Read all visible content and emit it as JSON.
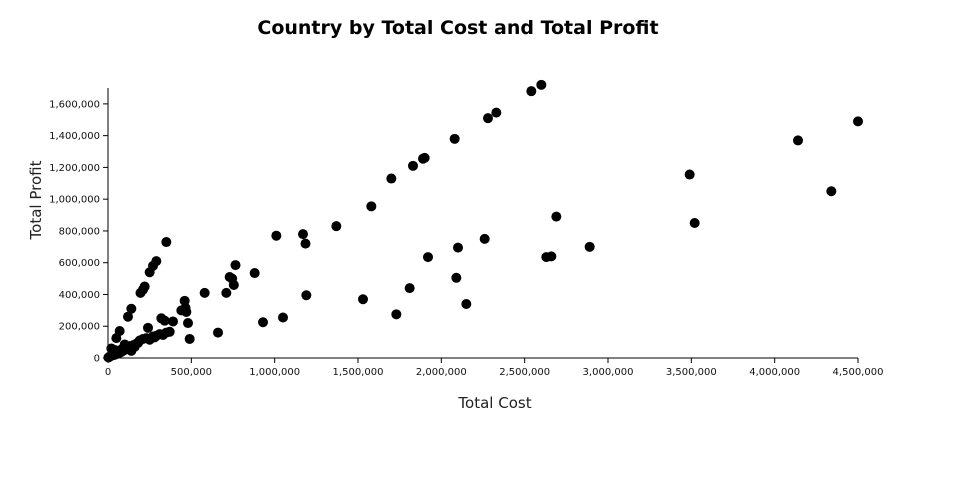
{
  "chart_data": {
    "type": "scatter",
    "title": "Country by Total Cost and Total Profit",
    "xlabel": "Total Cost",
    "ylabel": "Total Profit",
    "xlim": [
      0,
      4500000
    ],
    "ylim": [
      0,
      1700000
    ],
    "x_ticks": [
      0,
      500000,
      1000000,
      1500000,
      2000000,
      2500000,
      3000000,
      3500000,
      4000000,
      4500000
    ],
    "x_tick_labels": [
      "0",
      "500,000",
      "1,000,000",
      "1,500,000",
      "2,000,000",
      "2,500,000",
      "3,000,000",
      "3,500,000",
      "4,000,000",
      "4,500,000"
    ],
    "y_ticks": [
      0,
      200000,
      400000,
      600000,
      800000,
      1000000,
      1200000,
      1400000,
      1600000
    ],
    "y_tick_labels": [
      "0",
      "200,000",
      "400,000",
      "600,000",
      "800,000",
      "1,000,000",
      "1,200,000",
      "1,400,000",
      "1,600,000"
    ],
    "grid": false,
    "marker_color": "#000000",
    "points": [
      [
        2500,
        3000
      ],
      [
        10000,
        8000
      ],
      [
        15000,
        12000
      ],
      [
        20000,
        15000
      ],
      [
        25000,
        20000
      ],
      [
        30000,
        25000
      ],
      [
        35000,
        18000
      ],
      [
        40000,
        30000
      ],
      [
        45000,
        22000
      ],
      [
        50000,
        35000
      ],
      [
        55000,
        28000
      ],
      [
        60000,
        40000
      ],
      [
        65000,
        30000
      ],
      [
        70000,
        45000
      ],
      [
        75000,
        50000
      ],
      [
        80000,
        38000
      ],
      [
        85000,
        55000
      ],
      [
        90000,
        60000
      ],
      [
        95000,
        48000
      ],
      [
        100000,
        65000
      ],
      [
        110000,
        70000
      ],
      [
        120000,
        55000
      ],
      [
        130000,
        75000
      ],
      [
        140000,
        45000
      ],
      [
        150000,
        80000
      ],
      [
        160000,
        70000
      ],
      [
        170000,
        90000
      ],
      [
        180000,
        95000
      ],
      [
        190000,
        110000
      ],
      [
        210000,
        120000
      ],
      [
        230000,
        125000
      ],
      [
        250000,
        115000
      ],
      [
        270000,
        135000
      ],
      [
        290000,
        140000
      ],
      [
        310000,
        150000
      ],
      [
        330000,
        145000
      ],
      [
        350000,
        160000
      ],
      [
        370000,
        165000
      ],
      [
        20000,
        60000
      ],
      [
        40000,
        50000
      ],
      [
        50000,
        125000
      ],
      [
        70000,
        170000
      ],
      [
        100000,
        85000
      ],
      [
        120000,
        260000
      ],
      [
        140000,
        310000
      ],
      [
        195000,
        410000
      ],
      [
        210000,
        430000
      ],
      [
        220000,
        450000
      ],
      [
        250000,
        540000
      ],
      [
        270000,
        580000
      ],
      [
        290000,
        610000
      ],
      [
        350000,
        730000
      ],
      [
        240000,
        190000
      ],
      [
        280000,
        130000
      ],
      [
        320000,
        250000
      ],
      [
        340000,
        235000
      ],
      [
        390000,
        230000
      ],
      [
        440000,
        300000
      ],
      [
        460000,
        360000
      ],
      [
        470000,
        290000
      ],
      [
        465000,
        315000
      ],
      [
        480000,
        220000
      ],
      [
        490000,
        120000
      ],
      [
        580000,
        410000
      ],
      [
        660000,
        160000
      ],
      [
        710000,
        410000
      ],
      [
        730000,
        510000
      ],
      [
        745000,
        500000
      ],
      [
        755000,
        460000
      ],
      [
        765000,
        585000
      ],
      [
        880000,
        535000
      ],
      [
        930000,
        225000
      ],
      [
        1010000,
        770000
      ],
      [
        1050000,
        255000
      ],
      [
        1170000,
        780000
      ],
      [
        1185000,
        720000
      ],
      [
        1190000,
        395000
      ],
      [
        1370000,
        830000
      ],
      [
        1530000,
        370000
      ],
      [
        1580000,
        955000
      ],
      [
        1700000,
        1130000
      ],
      [
        1730000,
        275000
      ],
      [
        1810000,
        440000
      ],
      [
        1830000,
        1210000
      ],
      [
        1890000,
        1255000
      ],
      [
        1900000,
        1260000
      ],
      [
        1920000,
        635000
      ],
      [
        2090000,
        505000
      ],
      [
        2080000,
        1380000
      ],
      [
        2100000,
        695000
      ],
      [
        2150000,
        340000
      ],
      [
        2260000,
        750000
      ],
      [
        2280000,
        1510000
      ],
      [
        2330000,
        1545000
      ],
      [
        2540000,
        1680000
      ],
      [
        2600000,
        1720000
      ],
      [
        2630000,
        635000
      ],
      [
        2660000,
        640000
      ],
      [
        2690000,
        890000
      ],
      [
        2890000,
        700000
      ],
      [
        3490000,
        1155000
      ],
      [
        3520000,
        850000
      ],
      [
        4140000,
        1370000
      ],
      [
        4340000,
        1050000
      ],
      [
        4500000,
        1490000
      ]
    ]
  }
}
